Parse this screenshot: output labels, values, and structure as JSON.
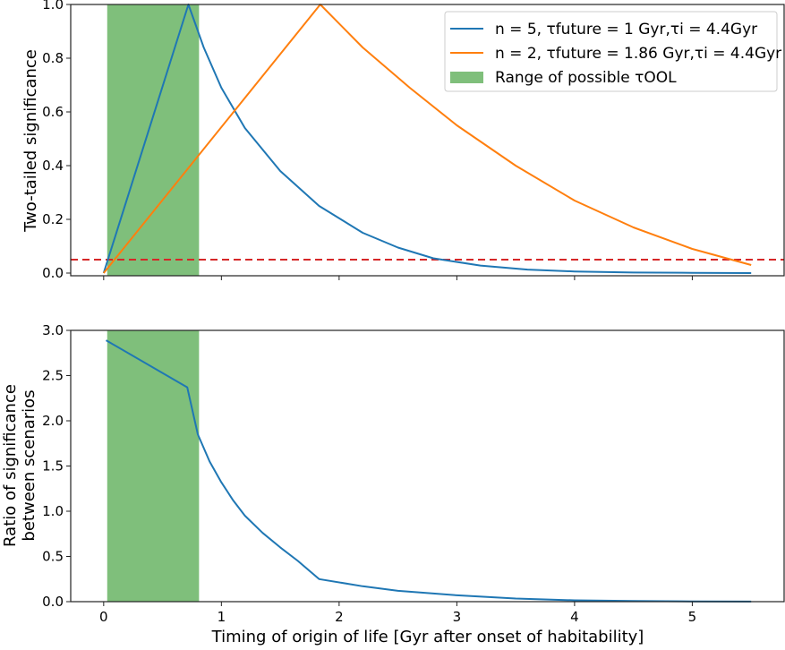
{
  "chart_data": [
    {
      "type": "line",
      "ylabel": "Two-tailed significance",
      "xlim": [
        -0.28,
        5.78
      ],
      "ylim": [
        -0.01,
        1.0
      ],
      "yticks": [
        "0.0",
        "0.2",
        "0.4",
        "0.6",
        "0.8",
        "1.0"
      ],
      "ytick_values": [
        0,
        0.2,
        0.4,
        0.6,
        0.8,
        1.0
      ],
      "xtick_values": [
        0,
        1,
        2,
        3,
        4,
        5
      ],
      "span": {
        "x0": 0.03,
        "x1": 0.81,
        "color": "#7fbf7b"
      },
      "hline": {
        "y": 0.05,
        "color": "#d62728",
        "style": "dashed"
      },
      "legend_position": "top-right",
      "legend": [
        {
          "type": "line",
          "color": "#1f77b4",
          "label": "n = 5, τfuture = 1 Gyr,τi = 4.4Gyr"
        },
        {
          "type": "line",
          "color": "#ff7f0e",
          "label": "n = 2, τfuture = 1.86 Gyr,τi = 4.4Gyr"
        },
        {
          "type": "patch",
          "color": "#7fbf7b",
          "label": "Range of possible τOOL"
        }
      ],
      "series": [
        {
          "name": "n = 5, τfuture = 1 Gyr",
          "color": "#1f77b4",
          "x": [
            0,
            0.72,
            0.85,
            1.0,
            1.2,
            1.5,
            1.83,
            2.2,
            2.5,
            2.8,
            3.2,
            3.6,
            4.0,
            4.5,
            5.0,
            5.5
          ],
          "y": [
            0,
            1.0,
            0.84,
            0.69,
            0.54,
            0.38,
            0.25,
            0.15,
            0.095,
            0.055,
            0.028,
            0.013,
            0.006,
            0.002,
            0.001,
            0.0
          ]
        },
        {
          "name": "n = 2, τfuture = 1.86 Gyr",
          "color": "#ff7f0e",
          "x": [
            0,
            1.84,
            2.2,
            2.6,
            3.0,
            3.5,
            4.0,
            4.5,
            5.0,
            5.5
          ],
          "y": [
            0,
            1.0,
            0.84,
            0.69,
            0.55,
            0.4,
            0.27,
            0.17,
            0.09,
            0.03
          ]
        }
      ]
    },
    {
      "type": "line",
      "xlabel": "Timing of origin of life [Gyr after onset of habitability]",
      "ylabel": [
        "Ratio of significance",
        "between scenarios"
      ],
      "xlim": [
        -0.28,
        5.78
      ],
      "ylim": [
        0,
        3.0
      ],
      "yticks": [
        "0.0",
        "0.5",
        "1.0",
        "1.5",
        "2.0",
        "2.5",
        "3.0"
      ],
      "ytick_values": [
        0,
        0.5,
        1.0,
        1.5,
        2.0,
        2.5,
        3.0
      ],
      "xticks": [
        "0",
        "1",
        "2",
        "3",
        "4",
        "5"
      ],
      "xtick_values": [
        0,
        1,
        2,
        3,
        4,
        5
      ],
      "span": {
        "x0": 0.03,
        "x1": 0.81,
        "color": "#7fbf7b"
      },
      "series": [
        {
          "name": "ratio",
          "color": "#1f77b4",
          "x": [
            0.02,
            0.71,
            0.8,
            0.9,
            1.0,
            1.1,
            1.2,
            1.35,
            1.5,
            1.65,
            1.83,
            2.2,
            2.5,
            3.0,
            3.5,
            4.0,
            4.5,
            5.0,
            5.5
          ],
          "y": [
            2.89,
            2.37,
            1.85,
            1.55,
            1.32,
            1.12,
            0.95,
            0.76,
            0.6,
            0.45,
            0.25,
            0.17,
            0.12,
            0.07,
            0.035,
            0.015,
            0.007,
            0.003,
            0.001
          ]
        }
      ]
    }
  ]
}
